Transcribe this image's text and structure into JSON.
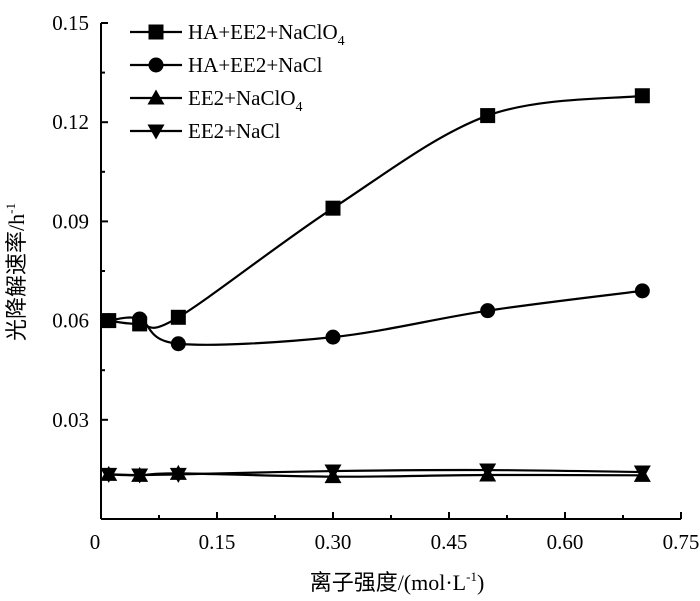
{
  "chart_data": {
    "type": "line",
    "xlabel_main": "离子强度/(mol·L",
    "xlabel_sup": "-1",
    "xlabel_tail": ")",
    "ylabel_main": "光降解速率/h",
    "ylabel_sup": "-1",
    "xlim": [
      0.0,
      0.75
    ],
    "ylim": [
      0.0,
      0.15
    ],
    "xticks": [
      "0.15",
      "0.30",
      "0.45",
      "0.60",
      "0.75"
    ],
    "xtick_values": [
      0.15,
      0.3,
      0.45,
      0.6,
      0.75
    ],
    "yticks": [
      "0.03",
      "0.06",
      "0.09",
      "0.12",
      "0.15"
    ],
    "ytick_values": [
      0.03,
      0.06,
      0.09,
      0.12,
      0.15
    ],
    "origin_label": "0",
    "legend_position": "top-left",
    "series": [
      {
        "name": "HA+EE2+NaClO",
        "name_sub": "4",
        "marker": "square",
        "x": [
          0.01,
          0.05,
          0.1,
          0.3,
          0.5,
          0.7
        ],
        "y": [
          0.06,
          0.059,
          0.061,
          0.094,
          0.122,
          0.128
        ]
      },
      {
        "name": "HA+EE2+NaCl",
        "marker": "circle",
        "x": [
          0.01,
          0.05,
          0.1,
          0.3,
          0.5,
          0.7
        ],
        "y": [
          0.06,
          0.0605,
          0.053,
          0.055,
          0.063,
          0.069
        ]
      },
      {
        "name": "EE2+NaClO",
        "name_sub": "4",
        "marker": "triangle-up",
        "x": [
          0.01,
          0.05,
          0.1,
          0.3,
          0.5,
          0.7
        ],
        "y": [
          0.0135,
          0.0132,
          0.0138,
          0.0128,
          0.0133,
          0.0132
        ]
      },
      {
        "name": "EE2+NaCl",
        "marker": "triangle-down",
        "x": [
          0.01,
          0.05,
          0.1,
          0.3,
          0.5,
          0.7
        ],
        "y": [
          0.0135,
          0.0133,
          0.0135,
          0.0145,
          0.0148,
          0.0142
        ]
      }
    ]
  }
}
